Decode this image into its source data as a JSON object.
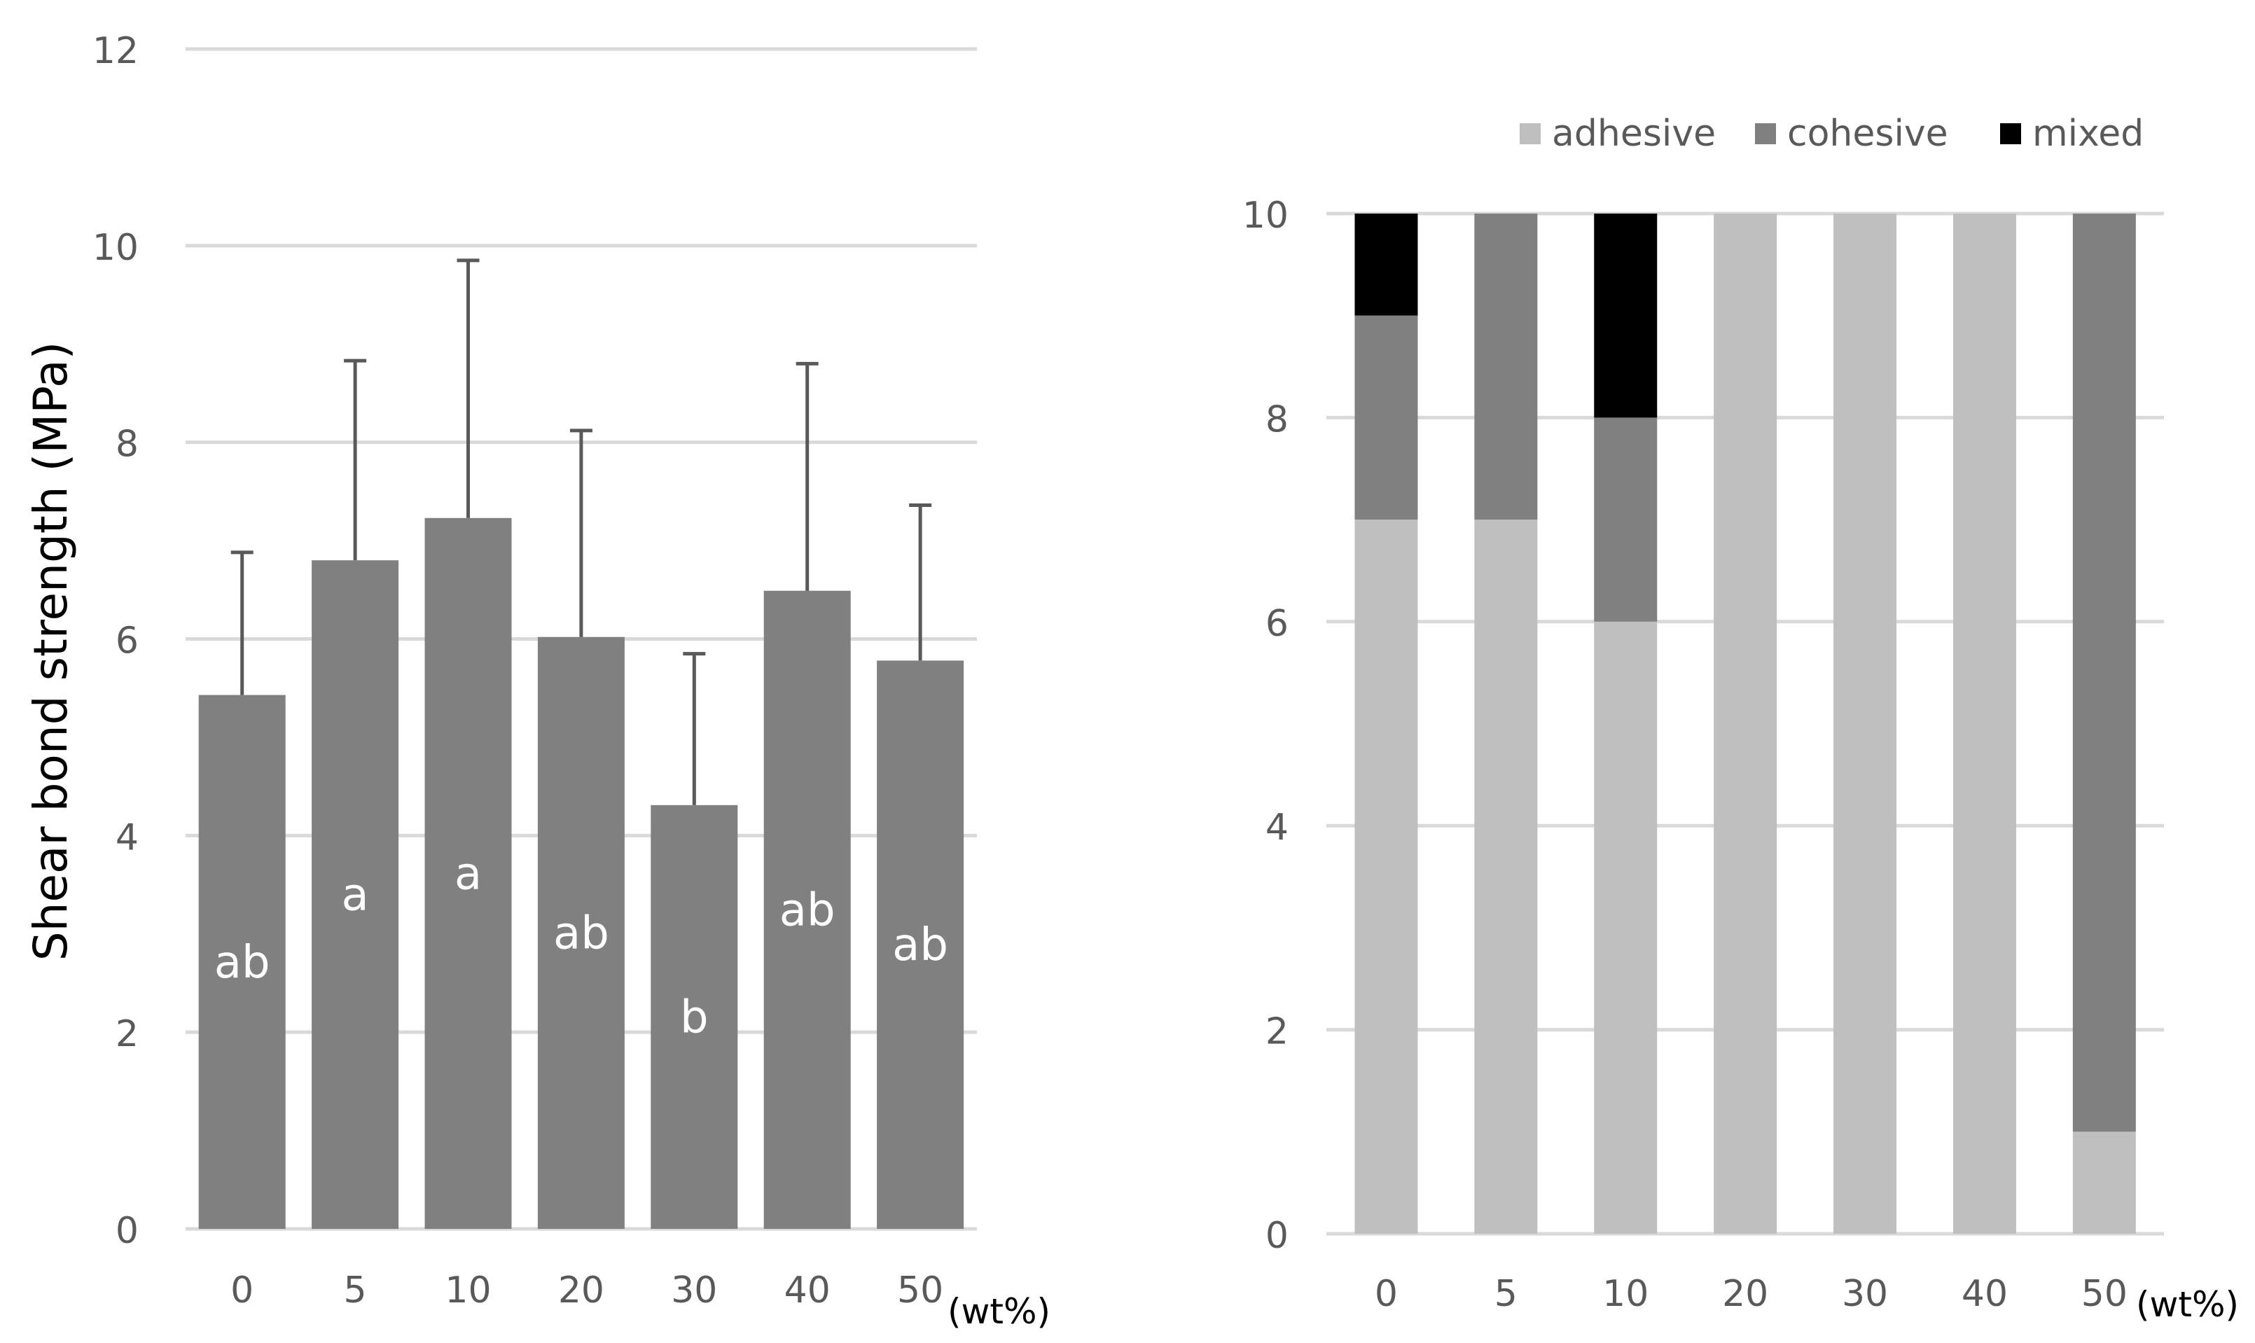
{
  "chart_data": [
    {
      "type": "bar",
      "categories": [
        "0",
        "5",
        "10",
        "20",
        "30",
        "40",
        "50"
      ],
      "x_unit_label": "(wt%)",
      "ylabel": "Shear bond strength (MPa)",
      "ylim": [
        0,
        12
      ],
      "yticks": [
        0,
        2,
        4,
        6,
        8,
        10,
        12
      ],
      "grid": true,
      "values": [
        5.43,
        6.8,
        7.23,
        6.02,
        4.31,
        6.49,
        5.78
      ],
      "error_upper": [
        1.45,
        2.03,
        2.62,
        2.1,
        1.54,
        2.31,
        1.58
      ],
      "group_letters": [
        "ab",
        "a",
        "a",
        "ab",
        "b",
        "ab",
        "ab"
      ],
      "colors": {
        "bar": "#808080",
        "error_bar": "#595959",
        "grid": "#d9d9d9",
        "text": "#595959",
        "letter": "#ffffff"
      }
    },
    {
      "type": "bar",
      "stacked": true,
      "categories": [
        "0",
        "5",
        "10",
        "20",
        "30",
        "40",
        "50"
      ],
      "x_unit_label": "(wt%)",
      "ylim": [
        0,
        10
      ],
      "yticks": [
        0,
        2,
        4,
        6,
        8,
        10
      ],
      "grid": true,
      "legend_position": "top",
      "series": [
        {
          "name": "adhesive",
          "color": "#bfbfbf",
          "values": [
            7,
            7,
            6,
            10,
            10,
            10,
            1
          ]
        },
        {
          "name": "cohesive",
          "color": "#808080",
          "values": [
            2,
            3,
            2,
            0,
            0,
            0,
            9
          ]
        },
        {
          "name": "mixed",
          "color": "#000000",
          "values": [
            1,
            0,
            2,
            0,
            0,
            0,
            0
          ]
        }
      ]
    }
  ]
}
